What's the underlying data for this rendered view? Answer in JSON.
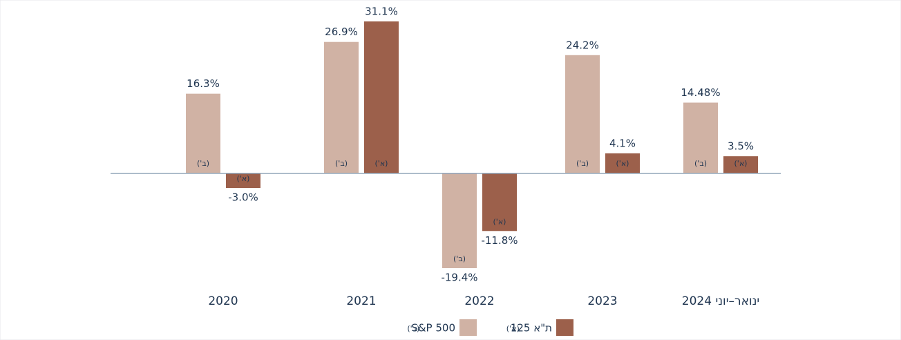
{
  "chart_data": {
    "type": "bar",
    "categories": [
      "2020",
      "2021",
      "2022",
      "2023",
      "ינואר–יוני 2024"
    ],
    "series": [
      {
        "name": "S&P 500",
        "tag": "(ב')",
        "color": "#d0b2a4",
        "values": [
          16.3,
          26.9,
          -19.4,
          24.2,
          14.48
        ],
        "value_labels": [
          "16.3%",
          "26.9%",
          "-19.4%",
          "24.2%",
          "14.48%"
        ]
      },
      {
        "name": "ת\"א 125",
        "tag": "(א')",
        "color": "#9c604b",
        "values": [
          -3.0,
          31.1,
          -11.8,
          4.1,
          3.5
        ],
        "value_labels": [
          "-3.0%",
          "31.1%",
          "-11.8%",
          "4.1%",
          "3.5%"
        ]
      }
    ]
  }
}
